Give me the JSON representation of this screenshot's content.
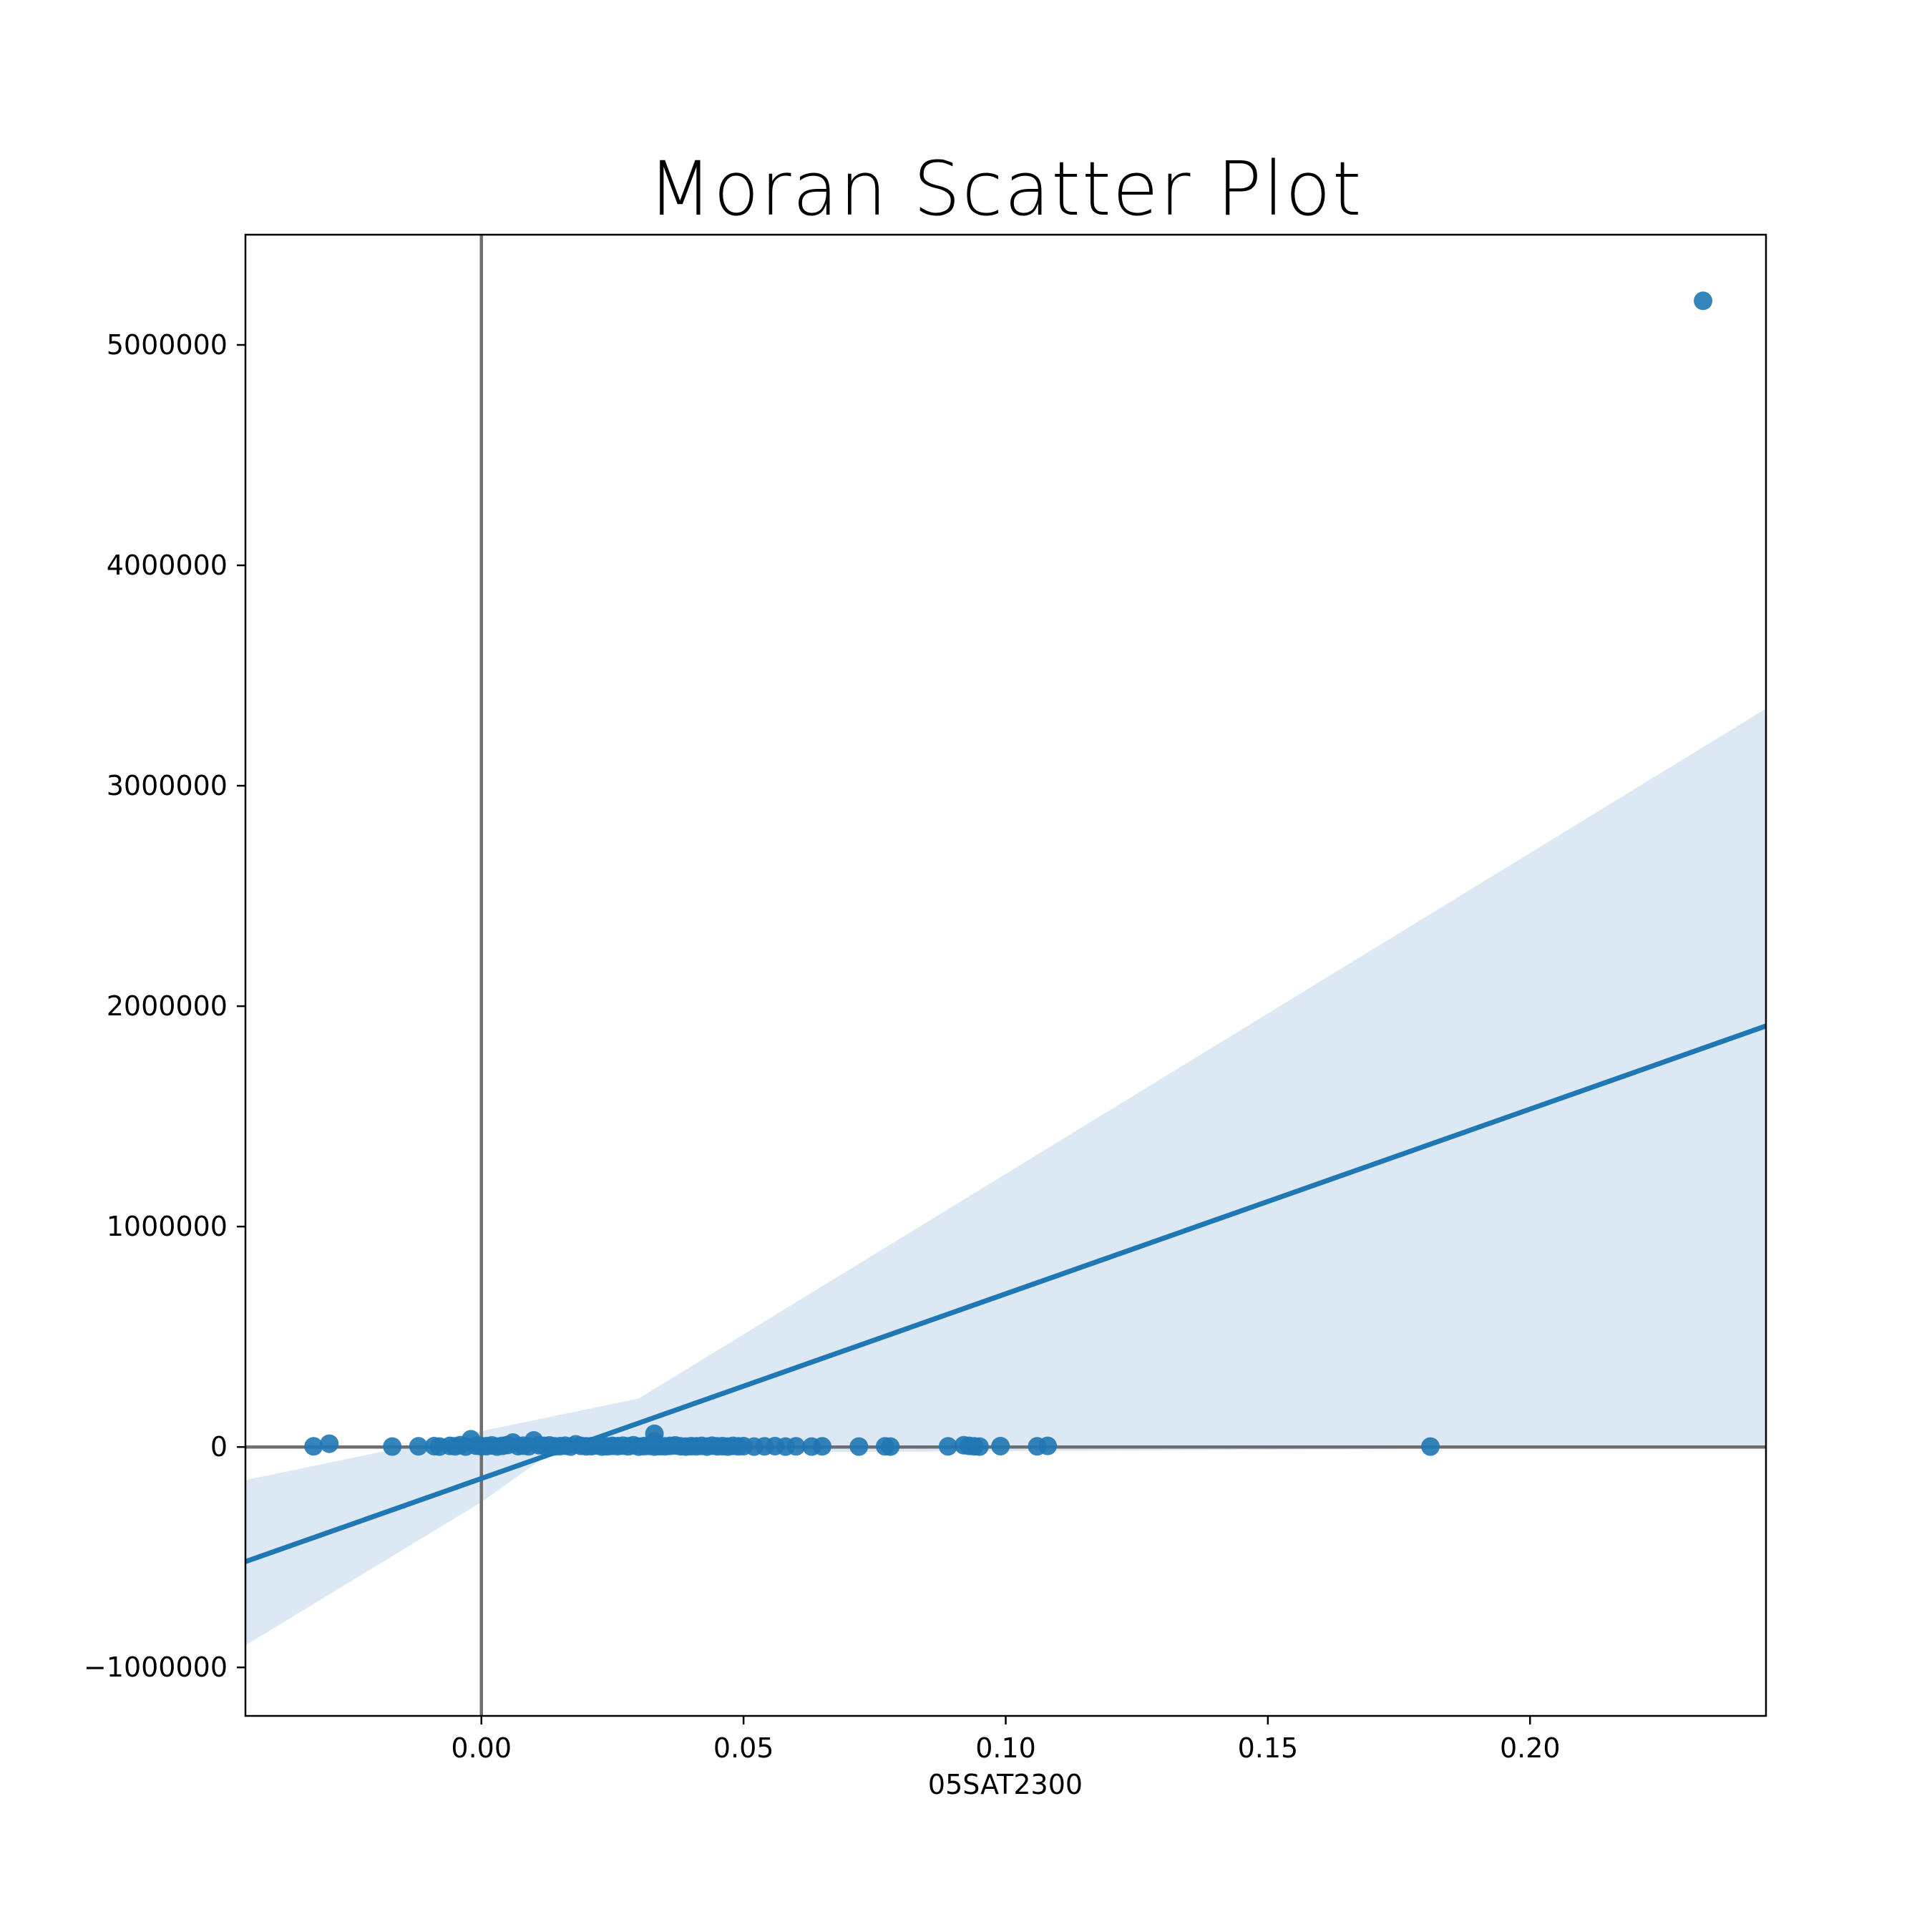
{
  "chart_data": {
    "type": "scatter",
    "title": "Moran Scatter Plot",
    "xlabel": "05SAT2300",
    "ylabel": "",
    "xlim": [
      -0.045,
      0.245
    ],
    "ylim": [
      -1220000,
      5500000
    ],
    "x_ticks": [
      0.0,
      0.05,
      0.1,
      0.15,
      0.2
    ],
    "x_tick_labels": [
      "0.00",
      "0.05",
      "0.10",
      "0.15",
      "0.20"
    ],
    "y_ticks": [
      -1000000,
      0,
      1000000,
      2000000,
      3000000,
      4000000,
      5000000
    ],
    "y_tick_labels": [
      "−1000000",
      "0",
      "1000000",
      "2000000",
      "3000000",
      "4000000",
      "5000000"
    ],
    "grid": false,
    "reference_lines": {
      "x": 0,
      "y": 0
    },
    "colors": {
      "points": "#1f77b4",
      "fit_line": "#1f77b4",
      "confidence_band": "#dce9f4",
      "reference_lines": "#6e6e6e"
    },
    "series": [
      {
        "points": [
          [
            -0.032,
            3000
          ],
          [
            -0.029,
            15000
          ],
          [
            -0.017,
            2000
          ],
          [
            -0.012,
            3000
          ],
          [
            -0.009,
            4000
          ],
          [
            -0.008,
            2000
          ],
          [
            -0.006,
            5000
          ],
          [
            -0.005,
            3000
          ],
          [
            -0.004,
            8000
          ],
          [
            -0.003,
            2000
          ],
          [
            -0.002,
            35000
          ],
          [
            -0.001,
            6000
          ],
          [
            0.0,
            3000
          ],
          [
            0.001,
            4000
          ],
          [
            0.002,
            7000
          ],
          [
            0.003,
            2000
          ],
          [
            0.004,
            5000
          ],
          [
            0.005,
            9000
          ],
          [
            0.006,
            20000
          ],
          [
            0.007,
            4000
          ],
          [
            0.008,
            6000
          ],
          [
            0.009,
            3000
          ],
          [
            0.01,
            30000
          ],
          [
            0.011,
            8000
          ],
          [
            0.012,
            5000
          ],
          [
            0.013,
            7000
          ],
          [
            0.014,
            3000
          ],
          [
            0.015,
            4000
          ],
          [
            0.016,
            6000
          ],
          [
            0.017,
            2000
          ],
          [
            0.018,
            12000
          ],
          [
            0.019,
            5000
          ],
          [
            0.02,
            3000
          ],
          [
            0.021,
            4000
          ],
          [
            0.022,
            7000
          ],
          [
            0.023,
            2000
          ],
          [
            0.024,
            3000
          ],
          [
            0.025,
            5000
          ],
          [
            0.026,
            4000
          ],
          [
            0.027,
            6000
          ],
          [
            0.028,
            3000
          ],
          [
            0.029,
            8000
          ],
          [
            0.03,
            2000
          ],
          [
            0.031,
            4000
          ],
          [
            0.032,
            5000
          ],
          [
            0.033,
            60000
          ],
          [
            0.033,
            25000
          ],
          [
            0.033,
            2000
          ],
          [
            0.034,
            4000
          ],
          [
            0.035,
            3000
          ],
          [
            0.036,
            5000
          ],
          [
            0.037,
            7000
          ],
          [
            0.038,
            3000
          ],
          [
            0.039,
            2000
          ],
          [
            0.04,
            4000
          ],
          [
            0.041,
            3000
          ],
          [
            0.042,
            5000
          ],
          [
            0.043,
            2000
          ],
          [
            0.044,
            6000
          ],
          [
            0.045,
            3000
          ],
          [
            0.046,
            4000
          ],
          [
            0.047,
            2000
          ],
          [
            0.048,
            5000
          ],
          [
            0.049,
            3000
          ],
          [
            0.05,
            4000
          ],
          [
            0.052,
            2000
          ],
          [
            0.054,
            3000
          ],
          [
            0.056,
            4000
          ],
          [
            0.058,
            2000
          ],
          [
            0.06,
            3000
          ],
          [
            0.063,
            2000
          ],
          [
            0.065,
            3000
          ],
          [
            0.072,
            2000
          ],
          [
            0.077,
            3000
          ],
          [
            0.078,
            2000
          ],
          [
            0.089,
            3000
          ],
          [
            0.092,
            8000
          ],
          [
            0.093,
            5000
          ],
          [
            0.094,
            3000
          ],
          [
            0.095,
            2000
          ],
          [
            0.099,
            4000
          ],
          [
            0.106,
            3000
          ],
          [
            0.108,
            5000
          ],
          [
            0.181,
            2000
          ],
          [
            0.233,
            5200000
          ]
        ]
      }
    ],
    "regression": {
      "line": [
        [
          -0.045,
          -520000
        ],
        [
          0.245,
          1910000
        ]
      ],
      "ci_lower": [
        [
          -0.045,
          -900000
        ],
        [
          0.0,
          -250000
        ],
        [
          0.013,
          -30000
        ],
        [
          0.245,
          0
        ]
      ],
      "ci_upper": [
        [
          -0.045,
          -150000
        ],
        [
          0.03,
          220000
        ],
        [
          0.245,
          3350000
        ]
      ]
    }
  }
}
